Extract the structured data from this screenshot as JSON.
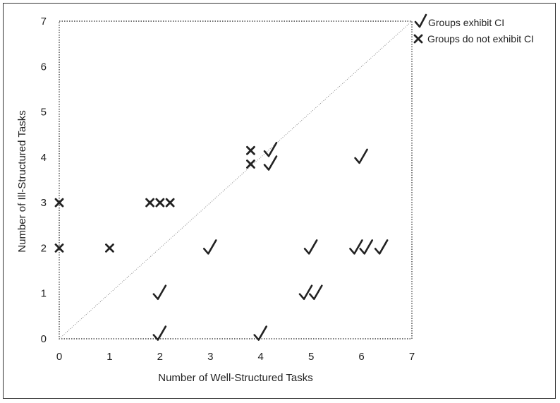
{
  "chart_data": {
    "type": "scatter",
    "title": "",
    "xlabel": "Number of Well-Structured Tasks",
    "ylabel": "Number of Ill-Structured Tasks",
    "xlim": [
      0,
      7
    ],
    "ylim": [
      0,
      7
    ],
    "xticks": [
      "0",
      "1",
      "2",
      "3",
      "4",
      "5",
      "6",
      "7"
    ],
    "yticks": [
      "0",
      "1",
      "2",
      "3",
      "4",
      "5",
      "6",
      "7"
    ],
    "grid": false,
    "reference_line": "diagonal y = x (dotted)",
    "legend_position": "top-right, outside plot",
    "series": [
      {
        "name": "Groups exhibit CI",
        "marker": "check",
        "points": [
          {
            "x": 2.0,
            "y": 0.1
          },
          {
            "x": 4.0,
            "y": 0.1
          },
          {
            "x": 2.0,
            "y": 1.0
          },
          {
            "x": 4.9,
            "y": 1.0
          },
          {
            "x": 5.1,
            "y": 1.0
          },
          {
            "x": 3.0,
            "y": 2.0
          },
          {
            "x": 5.0,
            "y": 2.0
          },
          {
            "x": 5.9,
            "y": 2.0
          },
          {
            "x": 6.1,
            "y": 2.0
          },
          {
            "x": 6.4,
            "y": 2.0
          },
          {
            "x": 4.2,
            "y": 3.85
          },
          {
            "x": 4.2,
            "y": 4.15
          },
          {
            "x": 6.0,
            "y": 4.0
          }
        ]
      },
      {
        "name": "Groups do not exhibit CI",
        "marker": "x",
        "points": [
          {
            "x": 0.0,
            "y": 2.0
          },
          {
            "x": 1.0,
            "y": 2.0
          },
          {
            "x": 0.0,
            "y": 3.0
          },
          {
            "x": 1.8,
            "y": 3.0
          },
          {
            "x": 2.0,
            "y": 3.0
          },
          {
            "x": 2.2,
            "y": 3.0
          },
          {
            "x": 3.8,
            "y": 3.85
          },
          {
            "x": 3.8,
            "y": 4.15
          }
        ]
      }
    ]
  },
  "colors": {
    "marker": "#222222",
    "axis": "#444444",
    "diagonal": "#888888"
  },
  "legend": {
    "items": [
      {
        "label": "Groups exhibit CI",
        "icon": "check-icon"
      },
      {
        "label": "Groups do not exhibit CI",
        "icon": "x-mark-icon"
      }
    ]
  }
}
